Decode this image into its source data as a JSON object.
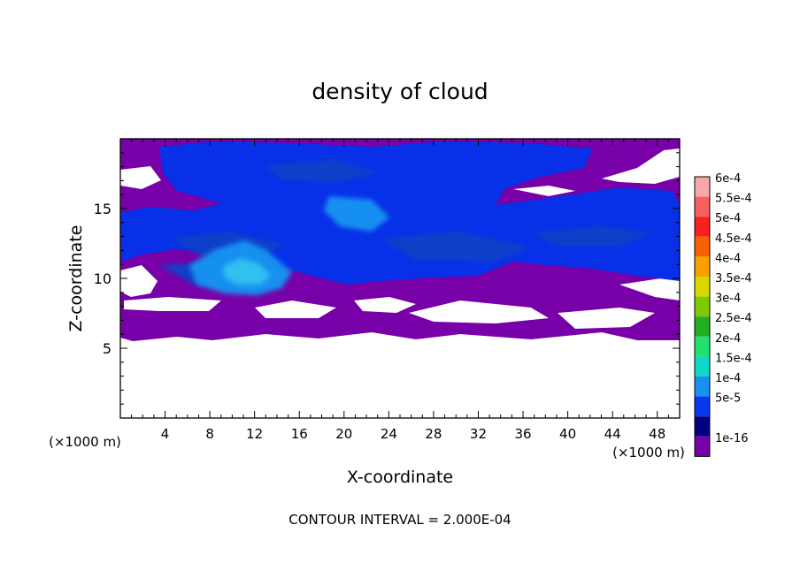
{
  "chart_data": {
    "type": "heatmap",
    "title": "density of cloud",
    "xlabel": "X-coordinate",
    "ylabel": "Z-coordinate",
    "x_unit_label": "(×1000 m)",
    "y_unit_label": "(×1000 m)",
    "xlim": [
      0,
      50
    ],
    "ylim": [
      0,
      20
    ],
    "x_ticks": [
      4,
      8,
      12,
      16,
      20,
      24,
      28,
      32,
      36,
      40,
      44,
      48
    ],
    "y_ticks": [
      5,
      10,
      15
    ],
    "footer": "CONTOUR INTERVAL = 2.000E-04",
    "legend_position": "right",
    "colorbar": {
      "levels": [
        {
          "label": "6e-4",
          "color": "#f8a8a8"
        },
        {
          "label": "5.5e-4",
          "color": "#f86060"
        },
        {
          "label": "5e-4",
          "color": "#f82020"
        },
        {
          "label": "4.5e-4",
          "color": "#f86000"
        },
        {
          "label": "4e-4",
          "color": "#f8a000"
        },
        {
          "label": "3.5e-4",
          "color": "#d8d800"
        },
        {
          "label": "3e-4",
          "color": "#80c800"
        },
        {
          "label": "2.5e-4",
          "color": "#20b020"
        },
        {
          "label": "2e-4",
          "color": "#20e070"
        },
        {
          "label": "1.5e-4",
          "color": "#10d8c8"
        },
        {
          "label": "1e-4",
          "color": "#1890f0"
        },
        {
          "label": "5e-5",
          "color": "#0838f0"
        },
        {
          "label": "",
          "color": "#000080"
        },
        {
          "label": "1e-16",
          "color": "#7800a8"
        }
      ]
    },
    "field_colors": {
      "low": "#7800a8",
      "mid": "#0830e8",
      "dark": "#1040c8",
      "high": "#1890f0",
      "peak": "#30c0f0"
    }
  }
}
